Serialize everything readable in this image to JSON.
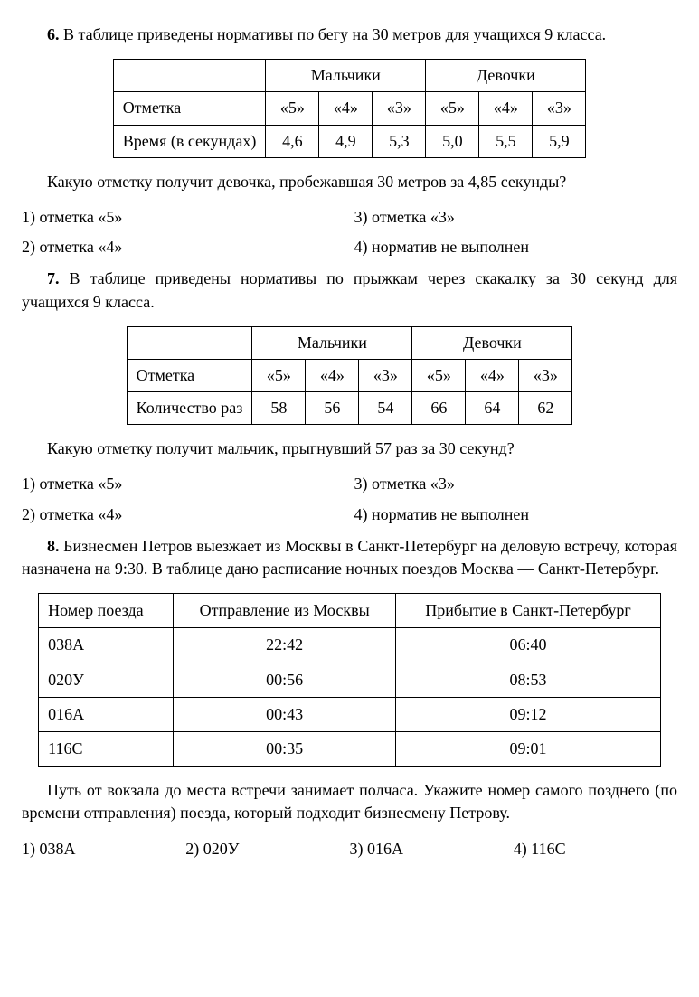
{
  "p6": {
    "num": "6.",
    "text": "В таблице приведены нормативы по бегу на 30 метров для учащихся 9 класса.",
    "table": {
      "group_boys": "Мальчики",
      "group_girls": "Девочки",
      "row_mark": "Отметка",
      "row_time": "Время (в секундах)",
      "marks": [
        "«5»",
        "«4»",
        "«3»",
        "«5»",
        "«4»",
        "«3»"
      ],
      "times": [
        "4,6",
        "4,9",
        "5,3",
        "5,0",
        "5,5",
        "5,9"
      ]
    },
    "question": "Какую отметку получит девочка, пробежавшая 30 метров за 4,85 секунды?",
    "opts": [
      "1) отметка «5»",
      "3) отметка «3»",
      "2) отметка «4»",
      "4) норматив не выполнен"
    ]
  },
  "p7": {
    "num": "7.",
    "text": "В таблице приведены нормативы по прыжкам через скакалку за 30 секунд для учащихся 9 класса.",
    "table": {
      "group_boys": "Мальчики",
      "group_girls": "Девочки",
      "row_mark": "Отметка",
      "row_count": "Количество раз",
      "marks": [
        "«5»",
        "«4»",
        "«3»",
        "«5»",
        "«4»",
        "«3»"
      ],
      "counts": [
        "58",
        "56",
        "54",
        "66",
        "64",
        "62"
      ]
    },
    "question": "Какую отметку получит мальчик, прыгнувший 57 раз за 30 секунд?",
    "opts": [
      "1) отметка «5»",
      "3) отметка «3»",
      "2) отметка «4»",
      "4) норматив не выполнен"
    ]
  },
  "p8": {
    "num": "8.",
    "text": "Бизнесмен Петров выезжает из Москвы в Санкт-Петербург на деловую встречу, которая назначена на 9:30. В таблице дано расписание ночных поездов Москва — Санкт-Петербург.",
    "table": {
      "h1": "Номер поезда",
      "h2": "Отправление из Москвы",
      "h3": "Прибытие в Санкт-Петербург",
      "rows": [
        [
          "038А",
          "22:42",
          "06:40"
        ],
        [
          "020У",
          "00:56",
          "08:53"
        ],
        [
          "016А",
          "00:43",
          "09:12"
        ],
        [
          "116С",
          "00:35",
          "09:01"
        ]
      ]
    },
    "post": "Путь от вокзала до места встречи занимает полчаса. Укажите номер самого позднего (по времени отправления) поезда, который подходит бизнесмену Петрову.",
    "opts": [
      "1) 038А",
      "2) 020У",
      "3) 016А",
      "4) 116С"
    ]
  }
}
